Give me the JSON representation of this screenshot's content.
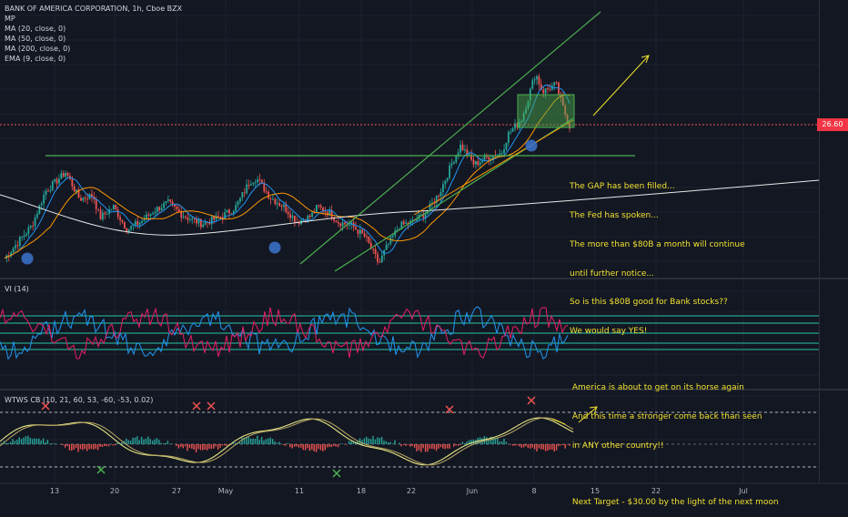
{
  "header": {
    "title": "BANK OF AMERICA CORPORATION, 1h, Cboe BZX",
    "indicators": [
      "MP",
      "MA (20, close, 0)",
      "MA (50, close, 0)",
      "MA (200, close, 0)",
      "EMA (9, close, 0)"
    ]
  },
  "price_tag": "26.60",
  "vi_label": "VI (14)",
  "wtws_label": "WTWS CB (10, 21, 60, 53, -60, -53, 0.02)",
  "annotation": {
    "block1": [
      "The GAP has been filled...",
      "The Fed has spoken...",
      "The more than $80B a month will continue",
      "until further notice...",
      "So is this $80B good for Bank stocks??",
      "We would say YES!"
    ],
    "block2": [
      " America is about to get on its horse again",
      " And this time a stronger come back than seen",
      " in ANY other country!!"
    ],
    "block3": [
      " Next Target - $30.00 by the light of the next moon"
    ]
  },
  "x_axis": [
    "13",
    "20",
    "27",
    "May",
    "11",
    "18",
    "22",
    "Jun",
    "8",
    "15",
    "22",
    "Jul"
  ],
  "colors": {
    "bg": "#131722",
    "up": "#26a69a",
    "down": "#ef5350",
    "channel": "#4caf50",
    "note": "#f0e130"
  },
  "chart_data": {
    "type": "candlestick",
    "title": "BANK OF AMERICA CORPORATION, 1h, Cboe BZX",
    "last_price": 26.6,
    "x_ticks": [
      "13",
      "20",
      "27",
      "May",
      "11",
      "18",
      "22",
      "Jun",
      "8",
      "15",
      "22",
      "Jul"
    ],
    "series_path": [
      [
        0,
        3
      ],
      [
        4,
        20
      ],
      [
        6,
        38
      ],
      [
        9,
        48
      ],
      [
        11,
        34
      ],
      [
        13,
        36
      ],
      [
        14,
        24
      ],
      [
        16,
        30
      ],
      [
        18,
        18
      ],
      [
        20,
        22
      ],
      [
        22,
        28
      ],
      [
        24,
        32
      ],
      [
        26,
        26
      ],
      [
        27,
        24
      ],
      [
        29,
        21
      ],
      [
        32,
        25
      ],
      [
        34,
        30
      ],
      [
        36,
        43
      ],
      [
        37,
        45
      ],
      [
        39,
        35
      ],
      [
        41,
        30
      ],
      [
        43,
        22
      ],
      [
        45,
        25
      ],
      [
        46,
        30
      ],
      [
        48,
        26
      ],
      [
        49,
        22
      ],
      [
        51,
        20
      ],
      [
        53,
        14
      ],
      [
        55,
        0
      ],
      [
        56,
        8
      ],
      [
        58,
        20
      ],
      [
        60,
        22
      ],
      [
        62,
        27
      ],
      [
        64,
        38
      ],
      [
        66,
        55
      ],
      [
        67,
        62
      ],
      [
        69,
        52
      ],
      [
        71,
        56
      ],
      [
        73,
        58
      ],
      [
        74,
        68
      ],
      [
        76,
        76
      ],
      [
        78,
        100
      ],
      [
        79,
        90
      ],
      [
        81,
        94
      ],
      [
        82,
        82
      ],
      [
        83,
        72
      ]
    ],
    "x_scale": "bar index (0 = first visible bar, 83 = last)",
    "y_scale": "relative 0-100 within visible price range"
  }
}
